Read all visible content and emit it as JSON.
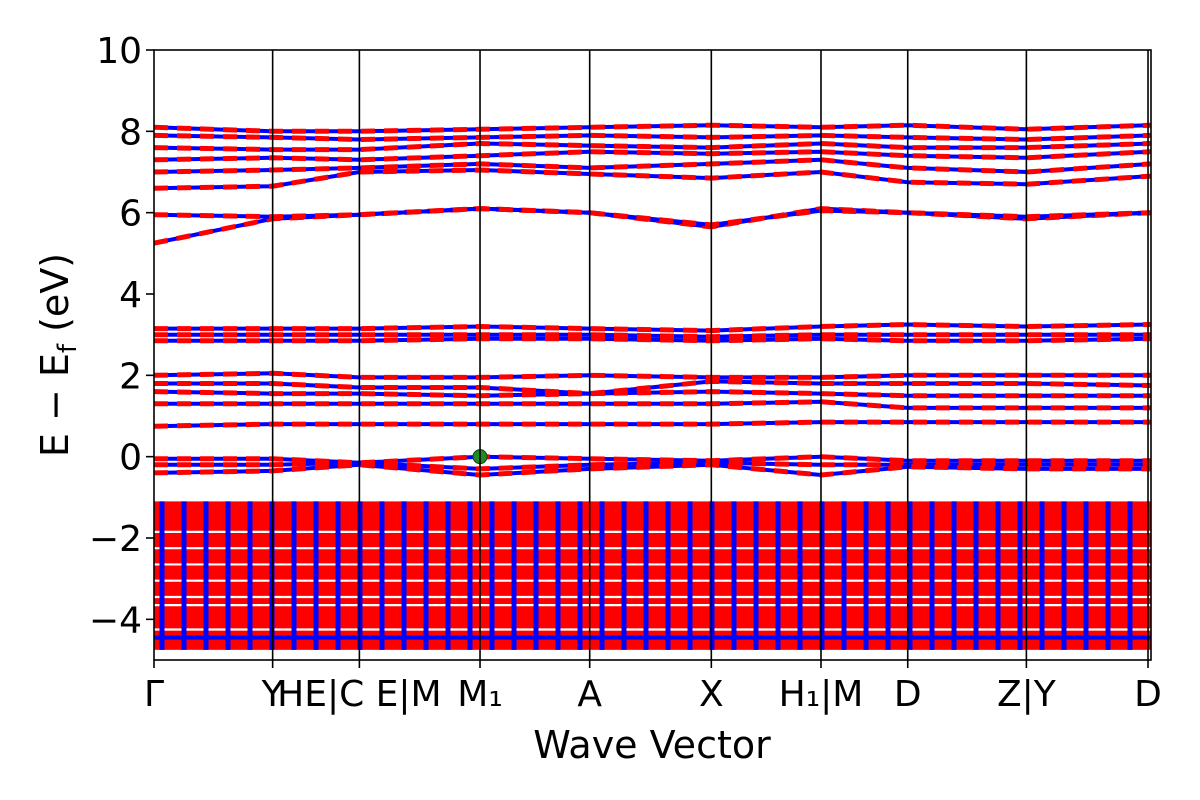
{
  "chart_data": {
    "type": "line",
    "xlabel": "Wave Vector",
    "ylabel": "E − E",
    "ylabel_sub": "f",
    "ylabel_unit": " (eV)",
    "ylim": [
      -5,
      10
    ],
    "yticks": [
      -4,
      -2,
      0,
      2,
      4,
      6,
      8,
      10
    ],
    "ytick_labels": [
      "−4",
      "−2",
      "0",
      "2",
      "4",
      "6",
      "8",
      "10"
    ],
    "xlim": [
      0,
      1
    ],
    "grid": false,
    "legend": "none",
    "high_symmetry_points": [
      {
        "x": 0.0,
        "label": "Γ"
      },
      {
        "x": 0.119,
        "label": "Y"
      },
      {
        "x": 0.206,
        "label": "H|C"
      },
      {
        "x": 0.327,
        "label": "E|M₁"
      },
      {
        "x": 0.437,
        "label": "A"
      },
      {
        "x": 0.559,
        "label": "X"
      },
      {
        "x": 0.669,
        "label": "H₁|M"
      },
      {
        "x": 0.756,
        "label": "D"
      },
      {
        "x": 0.875,
        "label": "Z|Y"
      },
      {
        "x": 0.997,
        "label": "D"
      }
    ],
    "x_labels_drawn": [
      {
        "x": 0.0,
        "text": "Γ"
      },
      {
        "x": 0.119,
        "text": "Y"
      },
      {
        "x": 0.206,
        "text": "HE|C E|M"
      },
      {
        "x": 0.327,
        "text": "M₁"
      },
      {
        "x": 0.437,
        "text": "A"
      },
      {
        "x": 0.559,
        "text": "X"
      },
      {
        "x": 0.669,
        "text": "H₁|M"
      },
      {
        "x": 0.756,
        "text": "D"
      },
      {
        "x": 0.875,
        "text": "Z|Y"
      },
      {
        "x": 0.997,
        "text": "D"
      }
    ],
    "series": [
      {
        "name": "",
        "style": "solid",
        "color": "#0000ff"
      },
      {
        "name": "",
        "style": "dashed",
        "color": "#ff0000"
      }
    ],
    "bands": [
      {
        "x": [
          0,
          0.119,
          0.206,
          0.327,
          0.437,
          0.559,
          0.669,
          0.756,
          0.875,
          1.0
        ],
        "y": [
          5.25,
          5.85,
          5.95,
          6.1,
          6.0,
          5.65,
          6.1,
          6.0,
          5.85,
          6.0
        ]
      },
      {
        "x": [
          0,
          0.119,
          0.206,
          0.327,
          0.437,
          0.559,
          0.669,
          0.756,
          0.875,
          1.0
        ],
        "y": [
          5.95,
          5.9,
          5.95,
          6.1,
          6.0,
          5.7,
          6.05,
          6.0,
          5.9,
          6.0
        ]
      },
      {
        "x": [
          0,
          0.119,
          0.206,
          0.327,
          0.437,
          0.559,
          0.669,
          0.756,
          0.875,
          1.0
        ],
        "y": [
          6.6,
          6.65,
          7.0,
          7.05,
          6.95,
          6.85,
          7.0,
          6.75,
          6.7,
          6.9
        ]
      },
      {
        "x": [
          0,
          0.119,
          0.206,
          0.327,
          0.437,
          0.559,
          0.669,
          0.756,
          0.875,
          1.0
        ],
        "y": [
          7.0,
          7.05,
          7.1,
          7.2,
          7.1,
          7.2,
          7.3,
          7.1,
          7.0,
          7.2
        ]
      },
      {
        "x": [
          0,
          0.119,
          0.206,
          0.327,
          0.437,
          0.559,
          0.669,
          0.756,
          0.875,
          1.0
        ],
        "y": [
          7.3,
          7.35,
          7.3,
          7.4,
          7.5,
          7.45,
          7.5,
          7.4,
          7.35,
          7.5
        ]
      },
      {
        "x": [
          0,
          0.119,
          0.206,
          0.327,
          0.437,
          0.559,
          0.669,
          0.756,
          0.875,
          1.0
        ],
        "y": [
          7.6,
          7.55,
          7.55,
          7.7,
          7.65,
          7.6,
          7.7,
          7.6,
          7.6,
          7.7
        ]
      },
      {
        "x": [
          0,
          0.119,
          0.206,
          0.327,
          0.437,
          0.559,
          0.669,
          0.756,
          0.875,
          1.0
        ],
        "y": [
          7.9,
          7.85,
          7.8,
          7.85,
          7.9,
          7.85,
          7.9,
          7.85,
          7.8,
          7.9
        ]
      },
      {
        "x": [
          0,
          0.119,
          0.206,
          0.327,
          0.437,
          0.559,
          0.669,
          0.756,
          0.875,
          1.0
        ],
        "y": [
          8.1,
          8.0,
          8.0,
          8.05,
          8.1,
          8.15,
          8.1,
          8.15,
          8.05,
          8.15
        ]
      },
      {
        "x": [
          0,
          0.119,
          0.206,
          0.327,
          0.437,
          0.559,
          0.669,
          0.756,
          0.875,
          1.0
        ],
        "y": [
          3.15,
          3.15,
          3.15,
          3.2,
          3.15,
          3.1,
          3.2,
          3.25,
          3.2,
          3.25
        ]
      },
      {
        "x": [
          0,
          0.119,
          0.206,
          0.327,
          0.437,
          0.559,
          0.669,
          0.756,
          0.875,
          1.0
        ],
        "y": [
          3.0,
          3.0,
          3.0,
          3.0,
          3.0,
          2.95,
          3.0,
          3.0,
          3.0,
          3.0
        ]
      },
      {
        "x": [
          0,
          0.119,
          0.206,
          0.327,
          0.437,
          0.559,
          0.669,
          0.756,
          0.875,
          1.0
        ],
        "y": [
          2.85,
          2.85,
          2.85,
          2.9,
          2.9,
          2.85,
          2.9,
          2.85,
          2.85,
          2.9
        ]
      },
      {
        "x": [
          0,
          0.119,
          0.206,
          0.327,
          0.437,
          0.559,
          0.669,
          0.756,
          0.875,
          1.0
        ],
        "y": [
          2.0,
          2.05,
          1.95,
          1.95,
          2.0,
          1.95,
          1.95,
          2.0,
          2.0,
          2.0
        ]
      },
      {
        "x": [
          0,
          0.119,
          0.206,
          0.327,
          0.437,
          0.559,
          0.669,
          0.756,
          0.875,
          1.0
        ],
        "y": [
          1.8,
          1.8,
          1.7,
          1.7,
          1.55,
          1.85,
          1.8,
          1.8,
          1.8,
          1.75
        ]
      },
      {
        "x": [
          0,
          0.119,
          0.206,
          0.327,
          0.437,
          0.559,
          0.669,
          0.756,
          0.875,
          1.0
        ],
        "y": [
          1.6,
          1.55,
          1.55,
          1.5,
          1.55,
          1.6,
          1.55,
          1.5,
          1.5,
          1.5
        ]
      },
      {
        "x": [
          0,
          0.119,
          0.206,
          0.327,
          0.437,
          0.559,
          0.669,
          0.756,
          0.875,
          1.0
        ],
        "y": [
          1.3,
          1.3,
          1.3,
          1.3,
          1.3,
          1.3,
          1.35,
          1.2,
          1.2,
          1.2
        ]
      },
      {
        "x": [
          0,
          0.119,
          0.206,
          0.327,
          0.437,
          0.559,
          0.669,
          0.756,
          0.875,
          1.0
        ],
        "y": [
          0.75,
          0.8,
          0.8,
          0.8,
          0.8,
          0.8,
          0.85,
          0.85,
          0.85,
          0.85
        ]
      },
      {
        "x": [
          0,
          0.119,
          0.206,
          0.327,
          0.437,
          0.559,
          0.669,
          0.756,
          0.875,
          1.0
        ],
        "y": [
          -0.05,
          -0.05,
          -0.15,
          0.0,
          -0.05,
          -0.1,
          0.0,
          -0.1,
          -0.1,
          -0.1
        ]
      },
      {
        "x": [
          0,
          0.119,
          0.206,
          0.327,
          0.437,
          0.559,
          0.669,
          0.756,
          0.875,
          1.0
        ],
        "y": [
          -0.2,
          -0.2,
          -0.15,
          -0.3,
          -0.2,
          -0.15,
          -0.2,
          -0.2,
          -0.2,
          -0.2
        ]
      },
      {
        "x": [
          0,
          0.119,
          0.206,
          0.327,
          0.437,
          0.559,
          0.669,
          0.756,
          0.875,
          1.0
        ],
        "y": [
          -0.4,
          -0.35,
          -0.2,
          -0.45,
          -0.3,
          -0.2,
          -0.45,
          -0.25,
          -0.3,
          -0.3
        ]
      }
    ],
    "dense_region": {
      "y_min": -4.75,
      "y_max": -1.1
    },
    "dense_gaps": [
      -1.85,
      -2.25,
      -2.65,
      -3.05,
      -3.45,
      -3.65,
      -4.25
    ],
    "fermi_marker": {
      "x": 0.327,
      "y": 0.0,
      "color": "#228b22"
    }
  }
}
